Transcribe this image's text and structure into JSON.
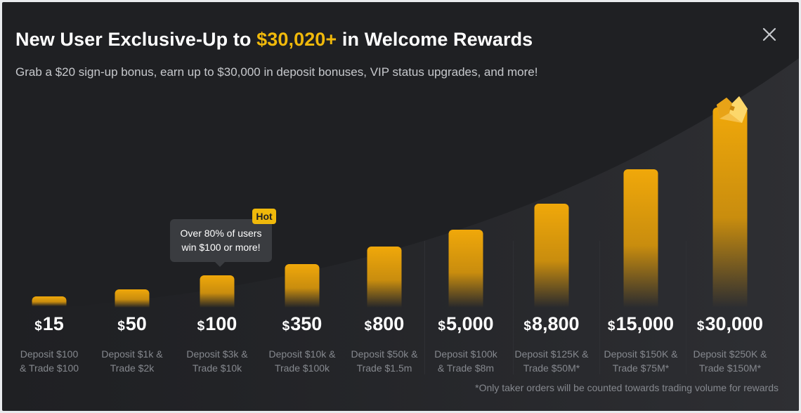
{
  "header": {
    "title_prefix": "New User Exclusive-Up to ",
    "title_highlight": "$30,020+",
    "title_suffix": " in Welcome Rewards",
    "subtitle": "Grab a $20 sign-up bonus, earn up to $30,000 in deposit bonuses, VIP status upgrades, and more!",
    "close_icon": "close-icon"
  },
  "tooltip": {
    "line1": "Over 80% of users",
    "line2": "win $100 or more!",
    "badge": "Hot"
  },
  "currency_symbol": "$",
  "tiers": [
    {
      "amount": "15",
      "req1": "Deposit $100",
      "req2": "& Trade $100"
    },
    {
      "amount": "50",
      "req1": "Deposit $1k &",
      "req2": "Trade $2k"
    },
    {
      "amount": "100",
      "req1": "Deposit $3k &",
      "req2": "Trade $10k"
    },
    {
      "amount": "350",
      "req1": "Deposit $10k &",
      "req2": "Trade $100k"
    },
    {
      "amount": "800",
      "req1": "Deposit $50k &",
      "req2": "Trade $1.5m"
    },
    {
      "amount": "5,000",
      "req1": "Deposit $100k",
      "req2": "& Trade $8m"
    },
    {
      "amount": "8,800",
      "req1": "Deposit $125K &",
      "req2": "Trade $50M*"
    },
    {
      "amount": "15,000",
      "req1": "Deposit $150K &",
      "req2": "Trade $75M*"
    },
    {
      "amount": "30,000",
      "req1": "Deposit $250K &",
      "req2": "Trade $150M*"
    }
  ],
  "footnote": "*Only taker orders will be counted towards trading volume for rewards",
  "colors": {
    "accent": "#f0b90b",
    "background": "#1f2023"
  },
  "icons": {
    "top_tier": "crown-icon"
  }
}
